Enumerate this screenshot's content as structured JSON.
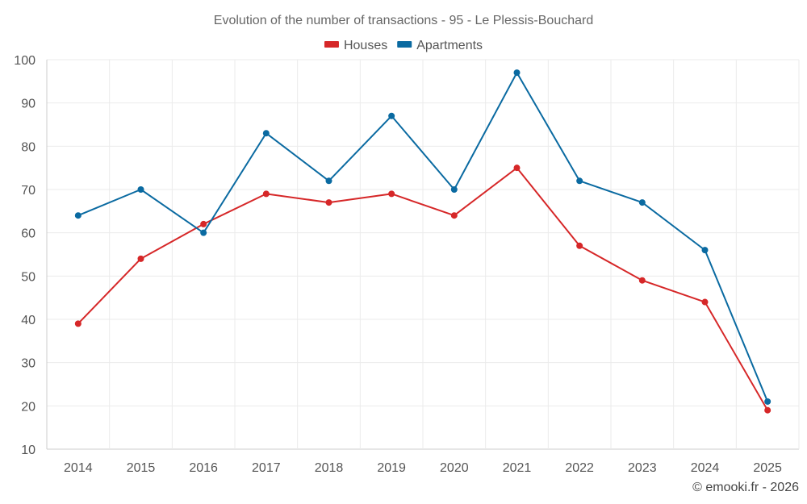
{
  "chart_data": {
    "type": "line",
    "title": "Evolution of the number of transactions - 95 - Le Plessis-Bouchard",
    "categories": [
      "2014",
      "2015",
      "2016",
      "2017",
      "2018",
      "2019",
      "2020",
      "2021",
      "2022",
      "2023",
      "2024",
      "2025"
    ],
    "series": [
      {
        "name": "Houses",
        "color": "#d62728",
        "values": [
          39,
          54,
          62,
          69,
          67,
          69,
          64,
          75,
          57,
          49,
          44,
          19
        ]
      },
      {
        "name": "Apartments",
        "color": "#0a6aa1",
        "values": [
          64,
          70,
          60,
          83,
          72,
          87,
          70,
          97,
          72,
          67,
          56,
          21
        ]
      }
    ],
    "ylim": [
      10,
      100
    ],
    "yticks": [
      10,
      20,
      30,
      40,
      50,
      60,
      70,
      80,
      90,
      100
    ],
    "xlabel": "",
    "ylabel": "",
    "grid": true,
    "legend_position": "top-center"
  },
  "credit": "© emooki.fr - 2026"
}
